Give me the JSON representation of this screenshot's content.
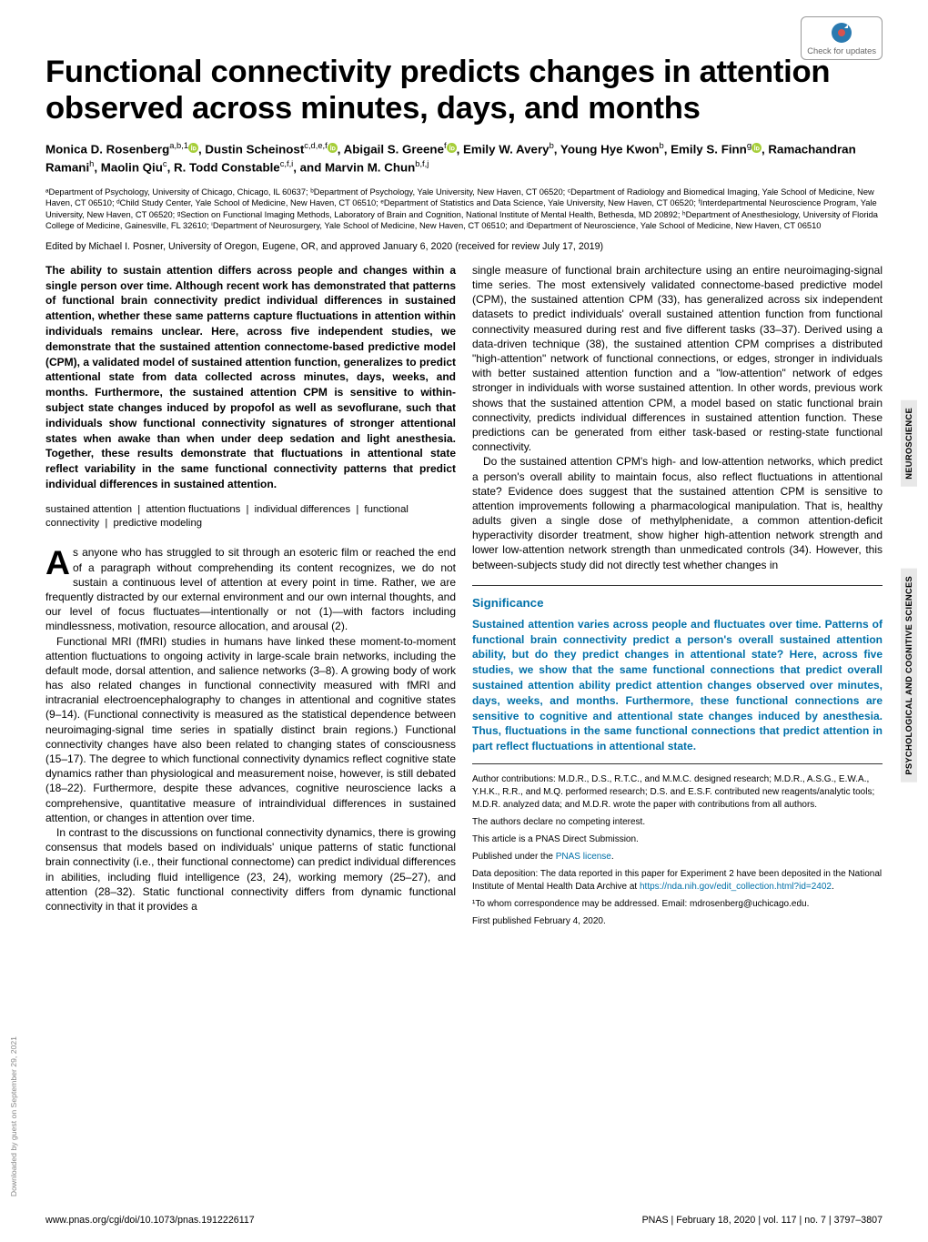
{
  "badge": {
    "label": "Check for updates"
  },
  "title": "Functional connectivity predicts changes in attention observed across minutes, days, and months",
  "authors_html": "Monica D. Rosenberg<sup>a,b,1</sup>, Dustin Scheinost<sup>c,d,e,f</sup>, Abigail S. Greene<sup>f</sup>, Emily W. Avery<sup>b</sup>, Young Hye Kwon<sup>b</sup>, Emily S. Finn<sup>g</sup>, Ramachandran Ramani<sup>h</sup>, Maolin Qiu<sup>c</sup>, R. Todd Constable<sup>c,f,i</sup>, and Marvin M. Chun<sup>b,f,j</sup>",
  "orcid_indices": [
    0,
    1,
    2,
    5
  ],
  "affiliations": "ᵃDepartment of Psychology, University of Chicago, Chicago, IL 60637; ᵇDepartment of Psychology, Yale University, New Haven, CT 06520; ᶜDepartment of Radiology and Biomedical Imaging, Yale School of Medicine, New Haven, CT 06510; ᵈChild Study Center, Yale School of Medicine, New Haven, CT 06510; ᵉDepartment of Statistics and Data Science, Yale University, New Haven, CT 06520; ᶠInterdepartmental Neuroscience Program, Yale University, New Haven, CT 06520; ᵍSection on Functional Imaging Methods, Laboratory of Brain and Cognition, National Institute of Mental Health, Bethesda, MD 20892; ʰDepartment of Anesthesiology, University of Florida College of Medicine, Gainesville, FL 32610; ⁱDepartment of Neurosurgery, Yale School of Medicine, New Haven, CT 06510; and ʲDepartment of Neuroscience, Yale School of Medicine, New Haven, CT 06510",
  "edited": "Edited by Michael I. Posner, University of Oregon, Eugene, OR, and approved January 6, 2020 (received for review July 17, 2019)",
  "abstract": "The ability to sustain attention differs across people and changes within a single person over time. Although recent work has demonstrated that patterns of functional brain connectivity predict individual differences in sustained attention, whether these same patterns capture fluctuations in attention within individuals remains unclear. Here, across five independent studies, we demonstrate that the sustained attention connectome-based predictive model (CPM), a validated model of sustained attention function, generalizes to predict attentional state from data collected across minutes, days, weeks, and months. Furthermore, the sustained attention CPM is sensitive to within-subject state changes induced by propofol as well as sevoflurane, such that individuals show functional connectivity signatures of stronger attentional states when awake than when under deep sedation and light anesthesia. Together, these results demonstrate that fluctuations in attentional state reflect variability in the same functional connectivity patterns that predict individual differences in sustained attention.",
  "keywords": [
    "sustained attention",
    "attention fluctuations",
    "individual differences",
    "functional connectivity",
    "predictive modeling"
  ],
  "body_left": [
    "As anyone who has struggled to sit through an esoteric film or reached the end of a paragraph without comprehending its content recognizes, we do not sustain a continuous level of attention at every point in time. Rather, we are frequently distracted by our external environment and our own internal thoughts, and our level of focus fluctuates—intentionally or not (1)—with factors including mindlessness, motivation, resource allocation, and arousal (2).",
    "Functional MRI (fMRI) studies in humans have linked these moment-to-moment attention fluctuations to ongoing activity in large-scale brain networks, including the default mode, dorsal attention, and salience networks (3–8). A growing body of work has also related changes in functional connectivity measured with fMRI and intracranial electroencephalography to changes in attentional and cognitive states (9–14). (Functional connectivity is measured as the statistical dependence between neuroimaging-signal time series in spatially distinct brain regions.) Functional connectivity changes have also been related to changing states of consciousness (15–17). The degree to which functional connectivity dynamics reflect cognitive state dynamics rather than physiological and measurement noise, however, is still debated (18–22). Furthermore, despite these advances, cognitive neuroscience lacks a comprehensive, quantitative measure of intraindividual differences in sustained attention, or changes in attention over time.",
    "In contrast to the discussions on functional connectivity dynamics, there is growing consensus that models based on individuals' unique patterns of static functional brain connectivity (i.e., their functional connectome) can predict individual differences in abilities, including fluid intelligence (23, 24), working memory (25–27), and attention (28–32). Static functional connectivity differs from dynamic functional connectivity in that it provides a"
  ],
  "body_right": [
    "single measure of functional brain architecture using an entire neuroimaging-signal time series. The most extensively validated connectome-based predictive model (CPM), the sustained attention CPM (33), has generalized across six independent datasets to predict individuals' overall sustained attention function from functional connectivity measured during rest and five different tasks (33–37). Derived using a data-driven technique (38), the sustained attention CPM comprises a distributed \"high-attention\" network of functional connections, or edges, stronger in individuals with better sustained attention function and a \"low-attention\" network of edges stronger in individuals with worse sustained attention. In other words, previous work shows that the sustained attention CPM, a model based on static functional brain connectivity, predicts individual differences in sustained attention function. These predictions can be generated from either task-based or resting-state functional connectivity.",
    "Do the sustained attention CPM's high- and low-attention networks, which predict a person's overall ability to maintain focus, also reflect fluctuations in attentional state? Evidence does suggest that the sustained attention CPM is sensitive to attention improvements following a pharmacological manipulation. That is, healthy adults given a single dose of methylphenidate, a common attention-deficit hyperactivity disorder treatment, show higher high-attention network strength and lower low-attention network strength than unmedicated controls (34). However, this between-subjects study did not directly test whether changes in"
  ],
  "significance": {
    "title": "Significance",
    "text": "Sustained attention varies across people and fluctuates over time. Patterns of functional brain connectivity predict a person's overall sustained attention ability, but do they predict changes in attentional state? Here, across five studies, we show that the same functional connections that predict overall sustained attention ability predict attention changes observed over minutes, days, weeks, and months. Furthermore, these functional connections are sensitive to cognitive and attentional state changes induced by anesthesia. Thus, fluctuations in the same functional connections that predict attention in part reflect fluctuations in attentional state."
  },
  "meta": {
    "author_contrib": "Author contributions: M.D.R., D.S., R.T.C., and M.M.C. designed research; M.D.R., A.S.G., E.W.A., Y.H.K., R.R., and M.Q. performed research; D.S. and E.S.F. contributed new reagents/analytic tools; M.D.R. analyzed data; and M.D.R. wrote the paper with contributions from all authors.",
    "competing": "The authors declare no competing interest.",
    "direct_sub": "This article is a PNAS Direct Submission.",
    "license_pre": "Published under the ",
    "license_link": "PNAS license",
    "data_dep_pre": "Data deposition: The data reported in this paper for Experiment 2 have been deposited in the National Institute of Mental Health Data Archive at ",
    "data_dep_link": "https://nda.nih.gov/edit_collection.html?id=2402",
    "corr": "¹To whom correspondence may be addressed. Email: mdrosenberg@uchicago.edu.",
    "first_pub": "First published February 4, 2020."
  },
  "footer": {
    "left": "www.pnas.org/cgi/doi/10.1073/pnas.1912226117",
    "right": "PNAS | February 18, 2020 | vol. 117 | no. 7 | 3797–3807"
  },
  "sidebar": {
    "top": "NEUROSCIENCE",
    "bottom": "PSYCHOLOGICAL AND COGNITIVE SCIENCES"
  },
  "download": "Downloaded by guest on September 29, 2021",
  "colors": {
    "accent": "#0070a8",
    "orcid": "#a6ce39",
    "badge_blue": "#2a7ab0",
    "badge_red": "#d9534f"
  }
}
